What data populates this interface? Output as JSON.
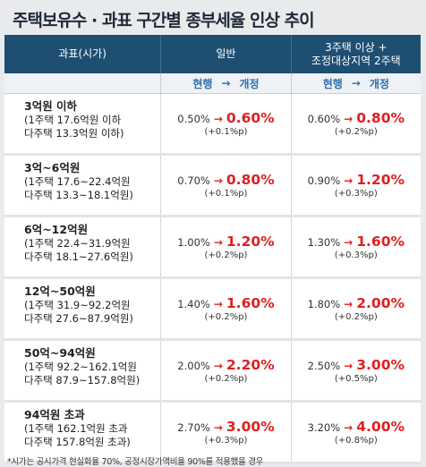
{
  "title": "주택보유수 · 과표 구간별 종부세율 인상 추이",
  "header": {
    "col1": "과표(시가)",
    "col2": "일반",
    "col3_line1": "3주택 이상 +",
    "col3_line2": "조정대상지역 2주택",
    "sub_current": "현행",
    "sub_arrow": "→",
    "sub_revised": "개정"
  },
  "rows": [
    {
      "tier": "3억원 이하",
      "line1": "(1주택 17.6억원 이하",
      "line2": "다주택 13.3억원 이하)",
      "general": {
        "current": "0.50%",
        "revised": "0.60%",
        "delta": "(+0.1%p)"
      },
      "multi": {
        "current": "0.60%",
        "revised": "0.80%",
        "delta": "(+0.2%p)"
      }
    },
    {
      "tier": "3억~6억원",
      "line1": "(1주택 17.6~22.4억원",
      "line2": "다주택 13.3~18.1억원)",
      "general": {
        "current": "0.70%",
        "revised": "0.80%",
        "delta": "(+0.1%p)"
      },
      "multi": {
        "current": "0.90%",
        "revised": "1.20%",
        "delta": "(+0.3%p)"
      }
    },
    {
      "tier": "6억~12억원",
      "line1": "(1주택 22.4~31.9억원",
      "line2": "다주택 18.1~27.6억원)",
      "general": {
        "current": "1.00%",
        "revised": "1.20%",
        "delta": "(+0.2%p)"
      },
      "multi": {
        "current": "1.30%",
        "revised": "1.60%",
        "delta": "(+0.3%p)"
      }
    },
    {
      "tier": "12억~50억원",
      "line1": "(1주택 31.9~92.2억원",
      "line2": "다주택 27.6~87.9억원)",
      "general": {
        "current": "1.40%",
        "revised": "1.60%",
        "delta": "(+0.2%p)"
      },
      "multi": {
        "current": "1.80%",
        "revised": "2.00%",
        "delta": "(+0.2%p)"
      }
    },
    {
      "tier": "50억~94억원",
      "line1": "(1주택 92.2~162.1억원",
      "line2": "다주택 87.9~157.8억원)",
      "general": {
        "current": "2.00%",
        "revised": "2.20%",
        "delta": "(+0.2%p)"
      },
      "multi": {
        "current": "2.50%",
        "revised": "3.00%",
        "delta": "(+0.5%p)"
      }
    },
    {
      "tier": "94억원 초과",
      "line1": "(1주택 162.1억원 초과",
      "line2": "다주택 157.8억원 초과)",
      "general": {
        "current": "2.70%",
        "revised": "3.00%",
        "delta": "(+0.3%p)"
      },
      "multi": {
        "current": "3.20%",
        "revised": "4.00%",
        "delta": "(+0.8%p)"
      }
    }
  ],
  "footnote": "*시가는 공시가격 현실화율 70%, 공정시장가액비율 90%를 적용했을 경우",
  "colors": {
    "header_bg": "#1f4e73",
    "revised_red": "#e02020",
    "sub_blue": "#2f6fb0"
  }
}
